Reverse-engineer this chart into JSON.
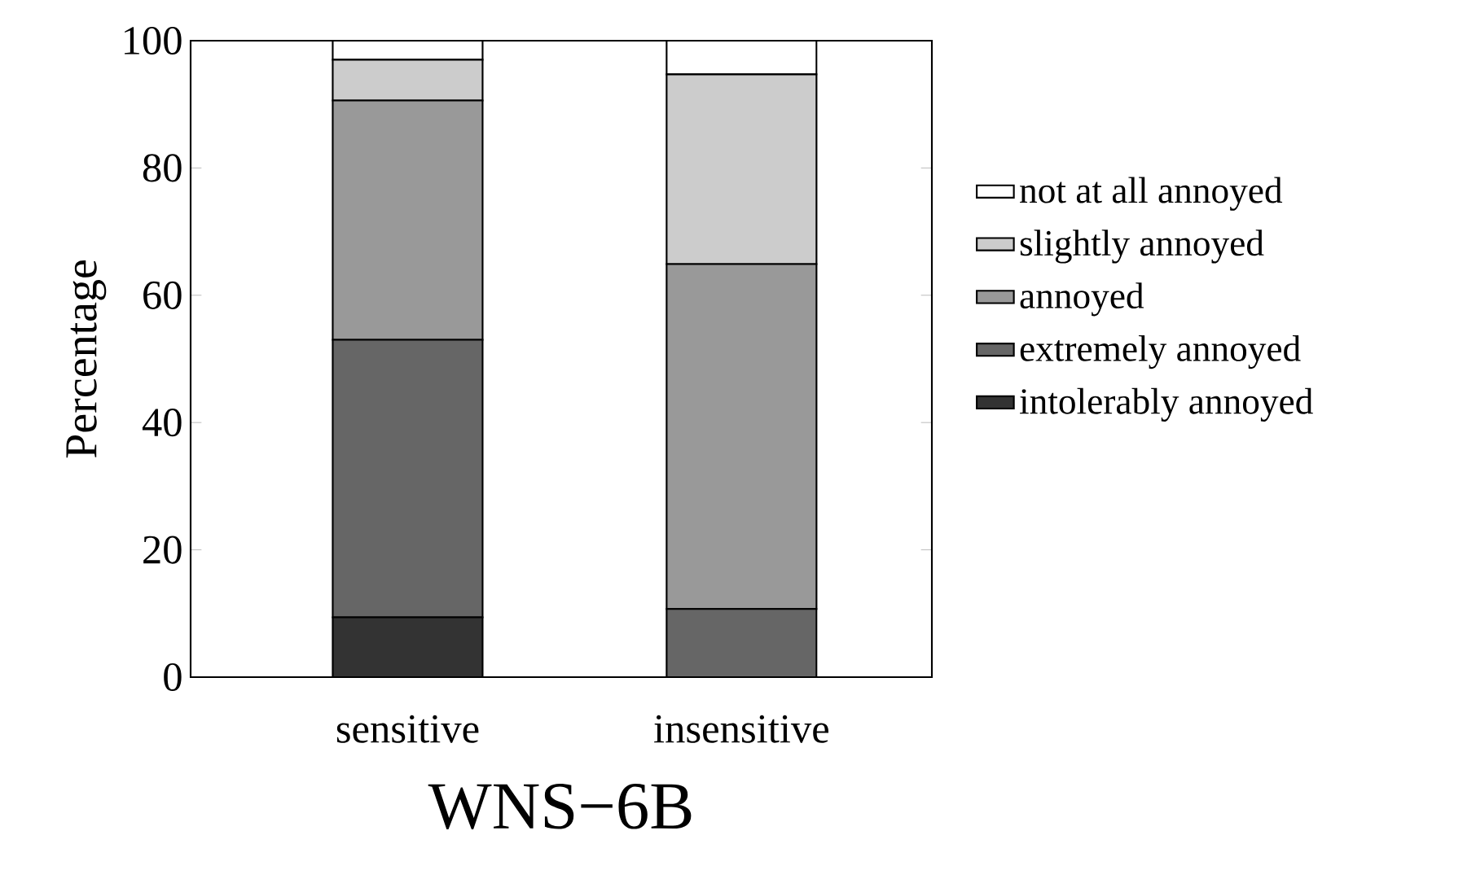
{
  "chart_data": {
    "type": "bar",
    "stacked": true,
    "xlabel": "WNS−6B",
    "ylabel": "Percentage",
    "categories": [
      "sensitive",
      "insensitive"
    ],
    "series": [
      {
        "name": "intolerably annoyed",
        "color": "#333333",
        "values": [
          9.4,
          0
        ]
      },
      {
        "name": "extremely annoyed",
        "color": "#666666",
        "values": [
          43.6,
          10.7
        ]
      },
      {
        "name": "annoyed",
        "color": "#999999",
        "values": [
          37.6,
          54.2
        ]
      },
      {
        "name": "slightly annoyed",
        "color": "#cccccc",
        "values": [
          6.4,
          29.8
        ]
      },
      {
        "name": "not at all annoyed",
        "color": "#ffffff",
        "values": [
          3.0,
          5.3
        ]
      }
    ],
    "ylim": [
      0,
      100
    ],
    "yticks": [
      0,
      20,
      40,
      60,
      80,
      100
    ],
    "legend": "right"
  }
}
